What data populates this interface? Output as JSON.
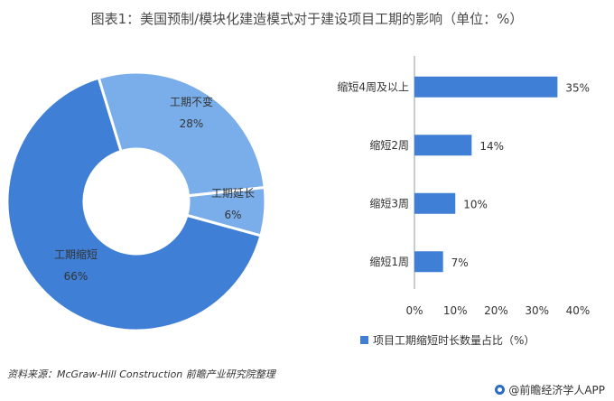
{
  "title": "图表1：美国预制/模块化建造模式对于建设项目工期的影响（单位：%）",
  "source": "资料来源：McGraw-Hill Construction 前瞻产业研究院整理",
  "brand": "@前瞻经济学人APP",
  "colors": {
    "dark_blue": "#3f7fd6",
    "light_blue": "#7aaeea",
    "bar": "#3f7fd6"
  },
  "chart_data": [
    {
      "type": "pie",
      "style": "donut",
      "slices": [
        {
          "label": "工期不变",
          "value": 28,
          "value_label": "28%",
          "color": "#7aaeea"
        },
        {
          "label": "工期延长",
          "value": 6,
          "value_label": "6%",
          "color": "#7aaeea"
        },
        {
          "label": "工期缩短",
          "value": 66,
          "value_label": "66%",
          "color": "#3f7fd6"
        }
      ]
    },
    {
      "type": "bar",
      "orientation": "horizontal",
      "categories": [
        "缩短4周及以上",
        "缩短2周",
        "缩短3周",
        "缩短1周"
      ],
      "values": [
        35,
        14,
        10,
        7
      ],
      "value_labels": [
        "35%",
        "14%",
        "10%",
        "7%"
      ],
      "xlim": [
        0,
        40
      ],
      "xticks": [
        "0%",
        "10%",
        "20%",
        "30%",
        "40%"
      ],
      "legend": {
        "label": "项目工期缩短时长数量占比（%）",
        "position": "bottom"
      },
      "grid": false
    }
  ]
}
